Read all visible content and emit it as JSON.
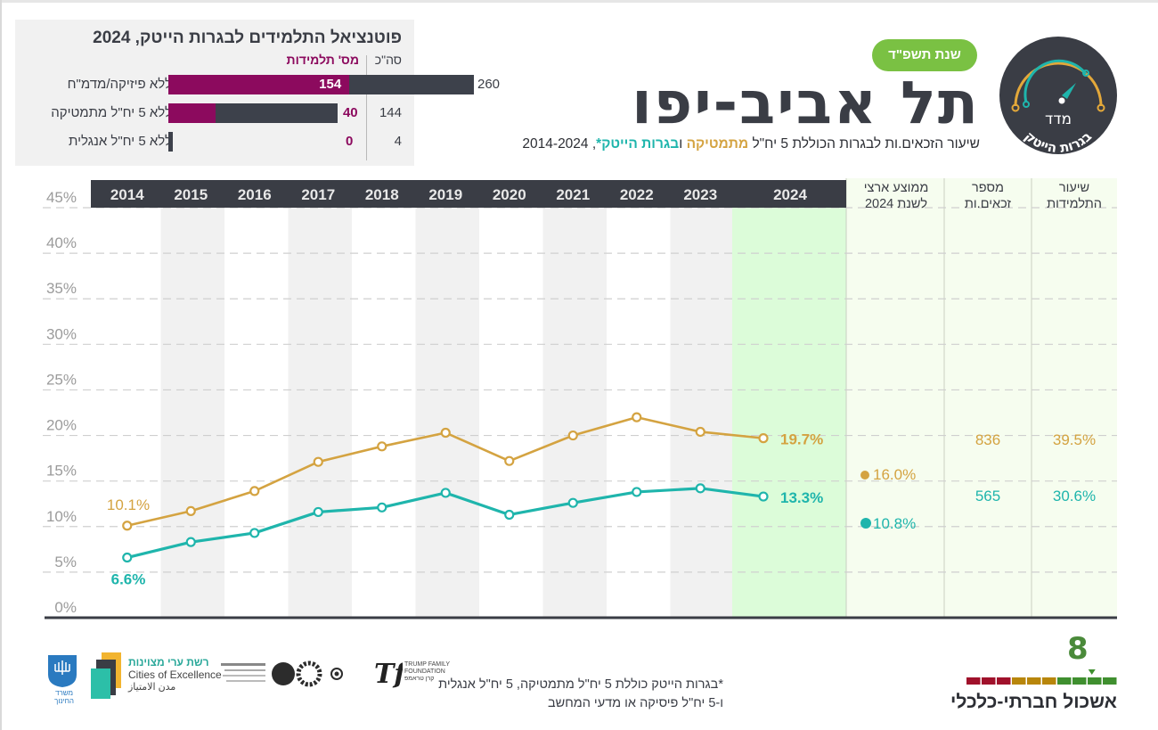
{
  "potential_panel": {
    "title": "פוטנציאל התלמידים לבגרות הייטק, 2024",
    "header_total": "סה\"כ",
    "header_students": "מס' תלמידות",
    "rows": [
      {
        "label": "ללא פיזיקה/מדמ\"ח",
        "students": 154,
        "total": 260,
        "students_text": "154",
        "total_text": "260"
      },
      {
        "label": "ללא 5 יח\"ל מתמטיקה",
        "students": 40,
        "total": 144,
        "students_text": "40",
        "total_text": "144"
      },
      {
        "label": "ללא 5 יח\"ל אנגלית",
        "students": 0,
        "total": 4,
        "students_text": "0",
        "total_text": "4"
      }
    ],
    "colors": {
      "students": "#8c0a5e",
      "total": "#3d414b"
    }
  },
  "header": {
    "year_badge": "שנת תשפ\"ד",
    "city_title": "תל אביב-יפו",
    "subtitle_part1": "שיעור הזכאים.ות לבגרות הכוללת 5 יח\"ל ",
    "subtitle_math": "מתמטיקה",
    "subtitle_and": " ו",
    "subtitle_hitech": "בגרות הייטק*",
    "subtitle_years": ", 2014-2024",
    "logo_top_text": "מדד",
    "logo_arc_text": "בגרות הייטק"
  },
  "side_columns": {
    "national_avg_header_line1": "ממוצע ארצי",
    "national_avg_header_line2": "לשנת 2024",
    "count_header_line1": "מספר",
    "count_header_line2": "זכאים.ות",
    "rate_header_line1": "שיעור",
    "rate_header_line2": "התלמידות",
    "math": {
      "national_avg": "16.0%",
      "count": "836",
      "rate": "39.5%"
    },
    "hitech": {
      "national_avg": "10.8%",
      "count": "565",
      "rate": "30.6%"
    }
  },
  "chart_data": {
    "type": "line",
    "title": "שיעור הזכאים.ות לבגרות הכוללת 5 יח\"ל מתמטיקה ובגרות הייטק*, 2014-2024",
    "xlabel": "",
    "ylabel": "",
    "categories": [
      "2014",
      "2015",
      "2016",
      "2017",
      "2018",
      "2019",
      "2020",
      "2021",
      "2022",
      "2023",
      "2024"
    ],
    "ylim": [
      0,
      45
    ],
    "yticks": [
      0,
      5,
      10,
      15,
      20,
      25,
      30,
      35,
      40,
      45
    ],
    "ytick_labels": [
      "0%",
      "5%",
      "10%",
      "15%",
      "20%",
      "25%",
      "30%",
      "35%",
      "40%",
      "45%"
    ],
    "grid": true,
    "series": [
      {
        "name": "מתמטיקה",
        "color": "#d4a341",
        "values": [
          10.1,
          11.7,
          13.9,
          17.1,
          18.8,
          20.3,
          17.2,
          20.0,
          22.0,
          20.4,
          19.7
        ],
        "start_label": "10.1%",
        "end_label": "19.7%"
      },
      {
        "name": "בגרות הייטק",
        "color": "#1fb5ac",
        "values": [
          6.6,
          8.3,
          9.3,
          11.6,
          12.1,
          13.7,
          11.3,
          12.6,
          13.8,
          14.2,
          13.3
        ],
        "start_label": "6.6%",
        "end_label": "13.3%"
      }
    ],
    "national_average_2024": {
      "math": 16.0,
      "hitech": 10.8
    }
  },
  "footer": {
    "footnote_line1": "*בגרות הייטק כוללת 5 יח\"ל מתמטיקה, 5 יח\"ל אנגלית",
    "footnote_line2": "ו-5 יח\"ל פיסיקה או מדעי המחשב",
    "cluster_number": "8",
    "cluster_label": "אשכול חברתי-כלכלי",
    "cluster_scale": 10,
    "cluster_value": 8,
    "logos": {
      "ministry": "משרד החינוך",
      "cities_he": "רשת ערי מצוינות",
      "cities_en": "Cities of Excellence",
      "cities_ar": "مدن الامتياز",
      "trump_line1": "TRUMP FAMILY",
      "trump_line2": "FOUNDATION",
      "trump_he": "קרן טראמפ"
    }
  }
}
